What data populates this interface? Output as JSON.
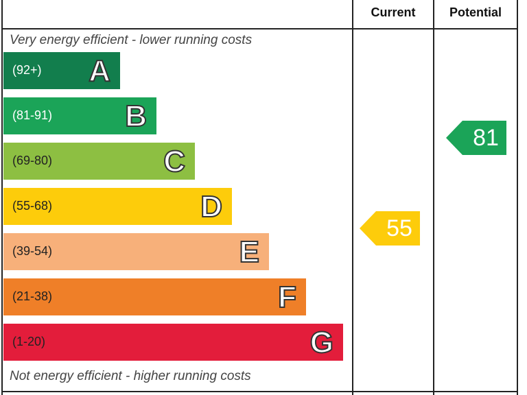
{
  "header": {
    "current": "Current",
    "potential": "Potential"
  },
  "top_note": "Very energy efficient - lower running costs",
  "bottom_note": "Not energy efficient - higher running costs",
  "bands": [
    {
      "range": "(92+)",
      "letter": "A",
      "color": "#127e4d"
    },
    {
      "range": "(81-91)",
      "letter": "B",
      "color": "#1ba458"
    },
    {
      "range": "(69-80)",
      "letter": "C",
      "color": "#8dbf42"
    },
    {
      "range": "(55-68)",
      "letter": "D",
      "color": "#fdcc0b"
    },
    {
      "range": "(39-54)",
      "letter": "E",
      "color": "#f7b07a"
    },
    {
      "range": "(21-38)",
      "letter": "F",
      "color": "#ef7f28"
    },
    {
      "range": "(1-20)",
      "letter": "G",
      "color": "#e31d3b"
    }
  ],
  "current": {
    "value": "55",
    "color": "#fdcc0b"
  },
  "potential": {
    "value": "81",
    "color": "#1ba458"
  }
}
